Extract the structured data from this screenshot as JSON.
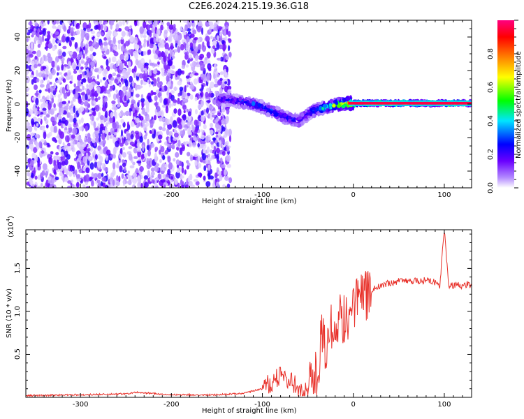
{
  "title": "C2E6.2024.215.19.36.G18",
  "chart_data": [
    {
      "type": "heatmap",
      "xlabel": "Height of straight line (km)",
      "ylabel": "Frequency (Hz)",
      "xlim": [
        -360,
        130
      ],
      "ylim": [
        -50,
        50
      ],
      "x_ticks": [
        -300,
        -200,
        -100,
        0,
        100
      ],
      "y_ticks": [
        -40,
        -20,
        0,
        20,
        40
      ],
      "colorbar": {
        "label": "Normalized spectral amplitude",
        "range": [
          0,
          1
        ],
        "ticks": [
          0.0,
          0.2,
          0.4,
          0.6,
          0.8
        ],
        "colormap": [
          "#ffffff",
          "#b48cff",
          "#6a00ff",
          "#0000ff",
          "#00e5ff",
          "#00ff00",
          "#ffff00",
          "#ff8000",
          "#ff0000",
          "#ff0080"
        ]
      },
      "ridge": {
        "x": [
          -150,
          -130,
          -110,
          -90,
          -75,
          -60,
          -45,
          -30,
          -15,
          0,
          30,
          60,
          90,
          110,
          130
        ],
        "y": [
          3,
          2,
          0,
          -4,
          -8,
          -10,
          -4,
          -2,
          0,
          0.5,
          0.5,
          0.5,
          0.5,
          0.5,
          0.5
        ],
        "peak_amplitude": [
          0.3,
          0.35,
          0.4,
          0.4,
          0.4,
          0.35,
          0.4,
          0.5,
          0.7,
          0.9,
          0.95,
          0.95,
          0.95,
          0.95,
          0.95
        ]
      },
      "noise_region_x": [
        -360,
        -135
      ]
    },
    {
      "type": "line",
      "xlabel": "Height of straight line (km)",
      "ylabel": "SNR (10 * v/v)",
      "y_multiplier_label": "(x10",
      "y_multiplier_exp": "4",
      "y_multiplier_close": ")",
      "xlim": [
        -360,
        130
      ],
      "ylim": [
        0,
        1.95
      ],
      "x_ticks": [
        -300,
        -200,
        -100,
        0,
        100
      ],
      "y_ticks": [
        0.5,
        1.0,
        1.5
      ],
      "color": "#e8312a",
      "series": [
        {
          "x": [
            -360,
            -300,
            -250,
            -240,
            -200,
            -150,
            -120,
            -100,
            -90,
            -80,
            -70,
            -60,
            -50,
            -45,
            -40,
            -35,
            -30,
            -25,
            -20,
            -15,
            -10,
            -5,
            0,
            10,
            20,
            30,
            40,
            50,
            60,
            70,
            80,
            90,
            95,
            100,
            105,
            110,
            115,
            120,
            125,
            130
          ],
          "y": [
            0.02,
            0.03,
            0.04,
            0.06,
            0.03,
            0.03,
            0.05,
            0.1,
            0.18,
            0.25,
            0.2,
            0.1,
            0.05,
            0.35,
            0.2,
            0.8,
            0.6,
            0.75,
            0.85,
            0.9,
            0.95,
            1.0,
            1.05,
            1.15,
            1.25,
            1.3,
            1.33,
            1.35,
            1.36,
            1.35,
            1.36,
            1.34,
            1.3,
            1.95,
            1.3,
            1.3,
            1.32,
            1.3,
            1.32,
            1.3
          ]
        }
      ]
    }
  ]
}
